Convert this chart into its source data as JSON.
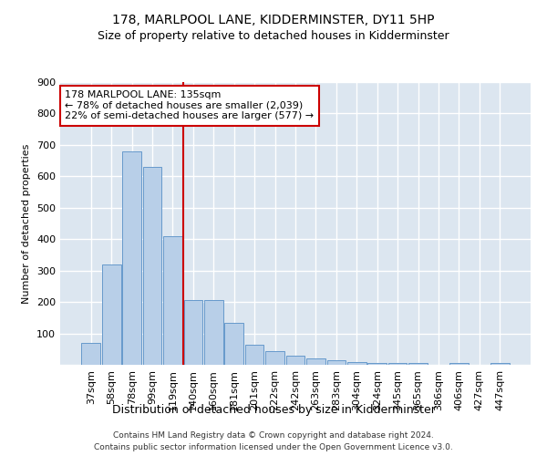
{
  "title": "178, MARLPOOL LANE, KIDDERMINSTER, DY11 5HP",
  "subtitle": "Size of property relative to detached houses in Kidderminster",
  "xlabel": "Distribution of detached houses by size in Kidderminster",
  "ylabel": "Number of detached properties",
  "footnote1": "Contains HM Land Registry data © Crown copyright and database right 2024.",
  "footnote2": "Contains public sector information licensed under the Open Government Licence v3.0.",
  "bar_labels": [
    "37sqm",
    "58sqm",
    "78sqm",
    "99sqm",
    "119sqm",
    "140sqm",
    "160sqm",
    "181sqm",
    "201sqm",
    "222sqm",
    "242sqm",
    "263sqm",
    "283sqm",
    "304sqm",
    "324sqm",
    "345sqm",
    "365sqm",
    "386sqm",
    "406sqm",
    "427sqm",
    "447sqm"
  ],
  "bar_values": [
    70,
    320,
    680,
    630,
    410,
    205,
    205,
    135,
    65,
    45,
    30,
    20,
    15,
    10,
    5,
    5,
    5,
    0,
    5,
    0,
    5
  ],
  "bar_color": "#b8cfe8",
  "bar_edge_color": "#6699cc",
  "vline_x": 4.5,
  "vline_color": "#cc0000",
  "annotation_text": "178 MARLPOOL LANE: 135sqm\n← 78% of detached houses are smaller (2,039)\n22% of semi-detached houses are larger (577) →",
  "annotation_box_color": "#ffffff",
  "annotation_box_edge": "#cc0000",
  "ylim": [
    0,
    900
  ],
  "yticks": [
    0,
    100,
    200,
    300,
    400,
    500,
    600,
    700,
    800,
    900
  ],
  "bg_color": "#dce6f0",
  "grid_color": "#ffffff",
  "title_fontsize": 10,
  "subtitle_fontsize": 9,
  "ylabel_fontsize": 8,
  "xlabel_fontsize": 9,
  "tick_fontsize": 8,
  "annot_fontsize": 8
}
